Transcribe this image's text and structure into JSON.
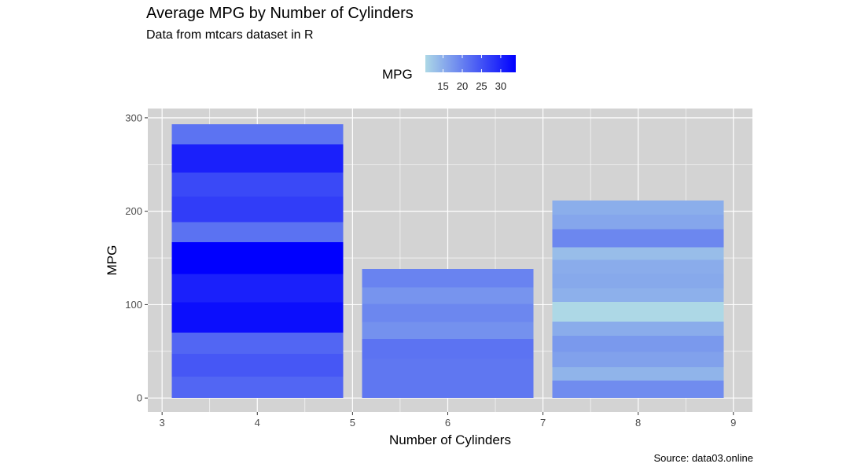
{
  "chart_data": {
    "type": "bar",
    "title": "Average MPG by Number of Cylinders",
    "subtitle": "Data from mtcars dataset in R",
    "xlabel": "Number of Cylinders",
    "ylabel": "MPG",
    "caption": "Source: data03.online",
    "xlim": [
      2.85,
      9.2
    ],
    "ylim": [
      -15,
      310
    ],
    "x_ticks": [
      3,
      4,
      5,
      6,
      7,
      8,
      9
    ],
    "y_ticks": [
      0,
      100,
      200,
      300
    ],
    "grid": true,
    "legend": {
      "title": "MPG",
      "position": "top",
      "ticks": [
        15,
        20,
        25,
        30
      ],
      "range": [
        10.4,
        33.9
      ],
      "low_color": "#ADD8E6",
      "high_color": "#0000FF"
    },
    "categories": [
      "4",
      "6",
      "8"
    ],
    "bars": [
      {
        "x": 4,
        "segments": [
          22.8,
          24.4,
          22.8,
          32.4,
          30.4,
          33.9,
          21.5,
          27.3,
          26.0,
          30.4,
          21.4
        ]
      },
      {
        "x": 6,
        "segments": [
          21.0,
          21.0,
          21.4,
          18.1,
          19.2,
          17.8,
          19.7
        ]
      },
      {
        "x": 8,
        "segments": [
          18.7,
          14.3,
          16.4,
          17.3,
          15.2,
          10.4,
          10.4,
          14.7,
          15.5,
          15.2,
          13.3,
          19.2,
          15.8,
          15.0
        ]
      }
    ]
  }
}
